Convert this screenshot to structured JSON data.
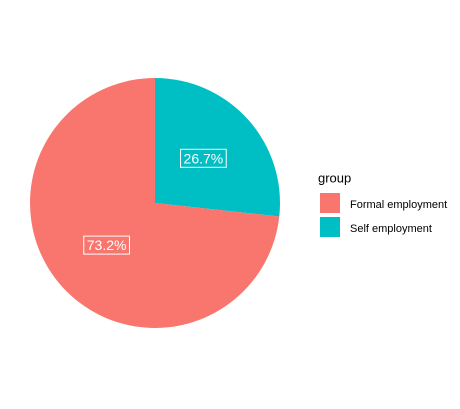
{
  "chart_data": {
    "type": "pie",
    "legend_title": "group",
    "categories": [
      "Formal employment",
      "Self employment"
    ],
    "values": [
      73.2,
      26.7
    ],
    "value_labels": [
      "73.2%",
      "26.7%"
    ],
    "colors": [
      "#F8766D",
      "#00BFC4"
    ],
    "legend": "right"
  }
}
